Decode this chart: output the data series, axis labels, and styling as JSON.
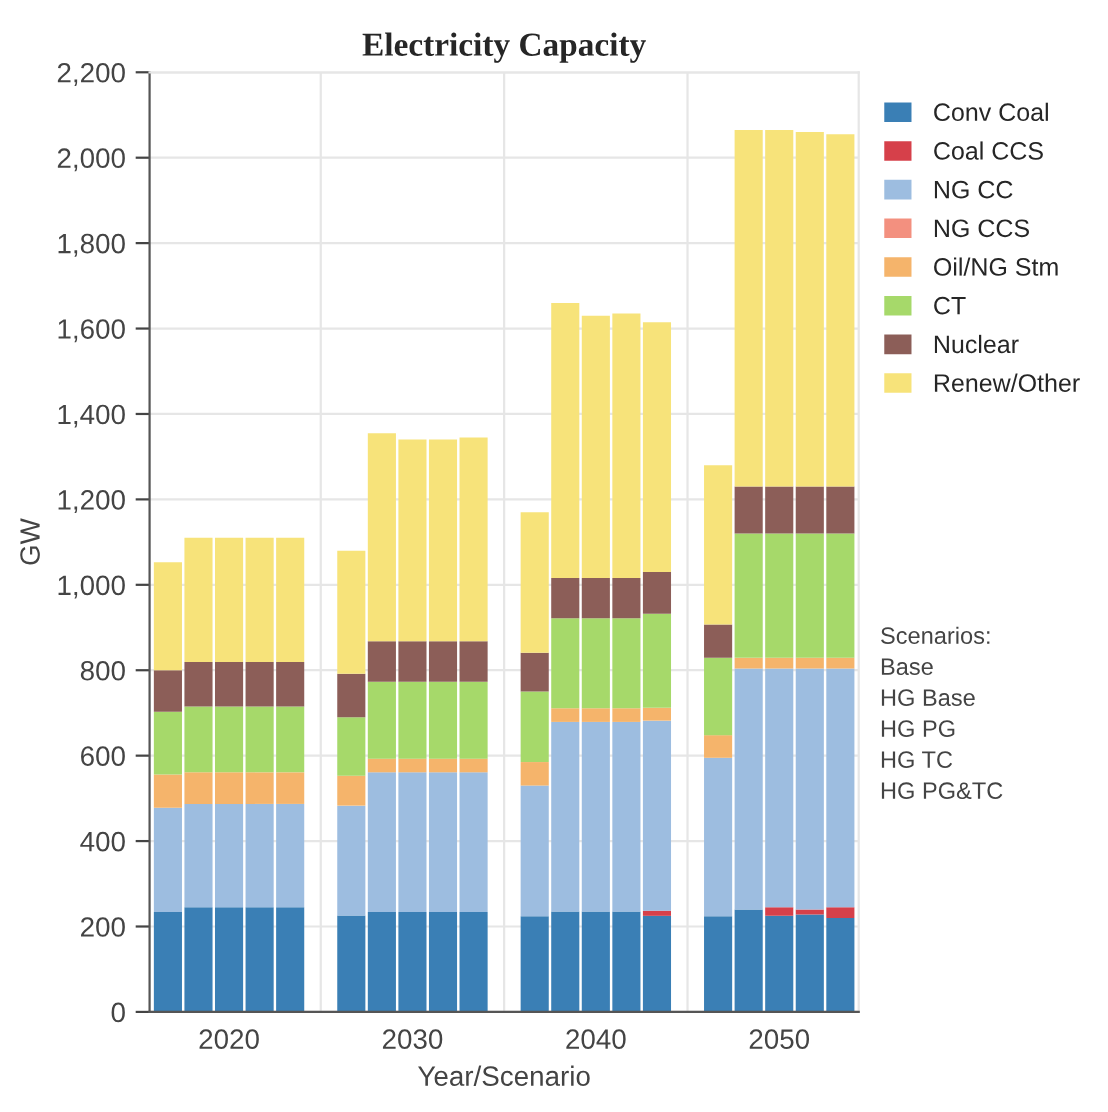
{
  "chart_data": {
    "type": "bar",
    "stacked": true,
    "title": "Electricity Capacity",
    "xlabel": "Year/Scenario",
    "ylabel": "GW",
    "categories": [
      null,
      null,
      "2020",
      null,
      null,
      null,
      null,
      null,
      "2030",
      null,
      null,
      null,
      null,
      null,
      "2040",
      null,
      null,
      null,
      null,
      null,
      "2050",
      null,
      null
    ],
    "series": [
      {
        "name": "Conv Coal",
        "color": "#3a7fb5",
        "values": [
          234,
          245,
          245,
          245,
          245,
          null,
          226,
          234,
          234,
          234,
          234,
          null,
          224,
          235,
          235,
          235,
          225,
          null,
          224,
          240,
          225,
          228,
          220
        ]
      },
      {
        "name": "Coal CCS",
        "color": "#d6404a",
        "values": [
          0,
          0,
          0,
          0,
          0,
          null,
          0,
          0,
          0,
          0,
          0,
          null,
          0,
          0,
          0,
          0,
          12,
          null,
          0,
          0,
          20,
          12,
          25
        ]
      },
      {
        "name": "NG CC",
        "color": "#9dbde0",
        "values": [
          244,
          242,
          242,
          242,
          242,
          null,
          257,
          327,
          327,
          327,
          327,
          null,
          306,
          444,
          444,
          444,
          445,
          null,
          371,
          564,
          559,
          564,
          559
        ]
      },
      {
        "name": "NG CCS",
        "color": "#f3907f",
        "values": [
          0,
          0,
          0,
          0,
          0,
          null,
          0,
          0,
          0,
          0,
          0,
          null,
          0,
          0,
          0,
          0,
          0,
          null,
          0,
          0,
          0,
          0,
          0
        ]
      },
      {
        "name": "Oil/NG Stm",
        "color": "#f5b46b",
        "values": [
          78,
          74,
          74,
          74,
          74,
          null,
          70,
          32,
          32,
          32,
          32,
          null,
          55,
          32,
          32,
          32,
          30,
          null,
          53,
          25,
          25,
          25,
          25
        ]
      },
      {
        "name": "CT",
        "color": "#a6d96a",
        "values": [
          147,
          154,
          154,
          154,
          154,
          null,
          137,
          180,
          180,
          180,
          180,
          null,
          165,
          211,
          211,
          211,
          220,
          null,
          181,
          291,
          291,
          291,
          291
        ]
      },
      {
        "name": "Nuclear",
        "color": "#8c5e58",
        "values": [
          97,
          104,
          104,
          104,
          104,
          null,
          102,
          95,
          95,
          95,
          95,
          null,
          91,
          94,
          94,
          94,
          98,
          null,
          78,
          110,
          110,
          110,
          110
        ]
      },
      {
        "name": "Renew/Other",
        "color": "#f7e37a",
        "values": [
          253,
          291,
          291,
          291,
          291,
          null,
          288,
          487,
          472,
          472,
          477,
          null,
          329,
          644,
          614,
          619,
          585,
          null,
          373,
          835,
          835,
          830,
          825
        ]
      }
    ],
    "ylim": [
      0,
      2200
    ],
    "yticks": [
      0,
      200,
      400,
      600,
      800,
      {
        "value": 1000,
        "label": "1,000"
      },
      {
        "value": 1200,
        "label": "1,200"
      },
      {
        "value": 1400,
        "label": "1,400"
      },
      {
        "value": 1600,
        "label": "1,600"
      },
      {
        "value": 1800,
        "label": "1,800"
      },
      {
        "value": 2000,
        "label": "2,000"
      },
      {
        "value": 2200,
        "label": "2,200"
      }
    ],
    "grid": true,
    "legend": "top right",
    "annotations": [
      "Scenarios:",
      "Base",
      "HG Base",
      "HG PG",
      "HG TC",
      "HG PG&TC"
    ]
  }
}
